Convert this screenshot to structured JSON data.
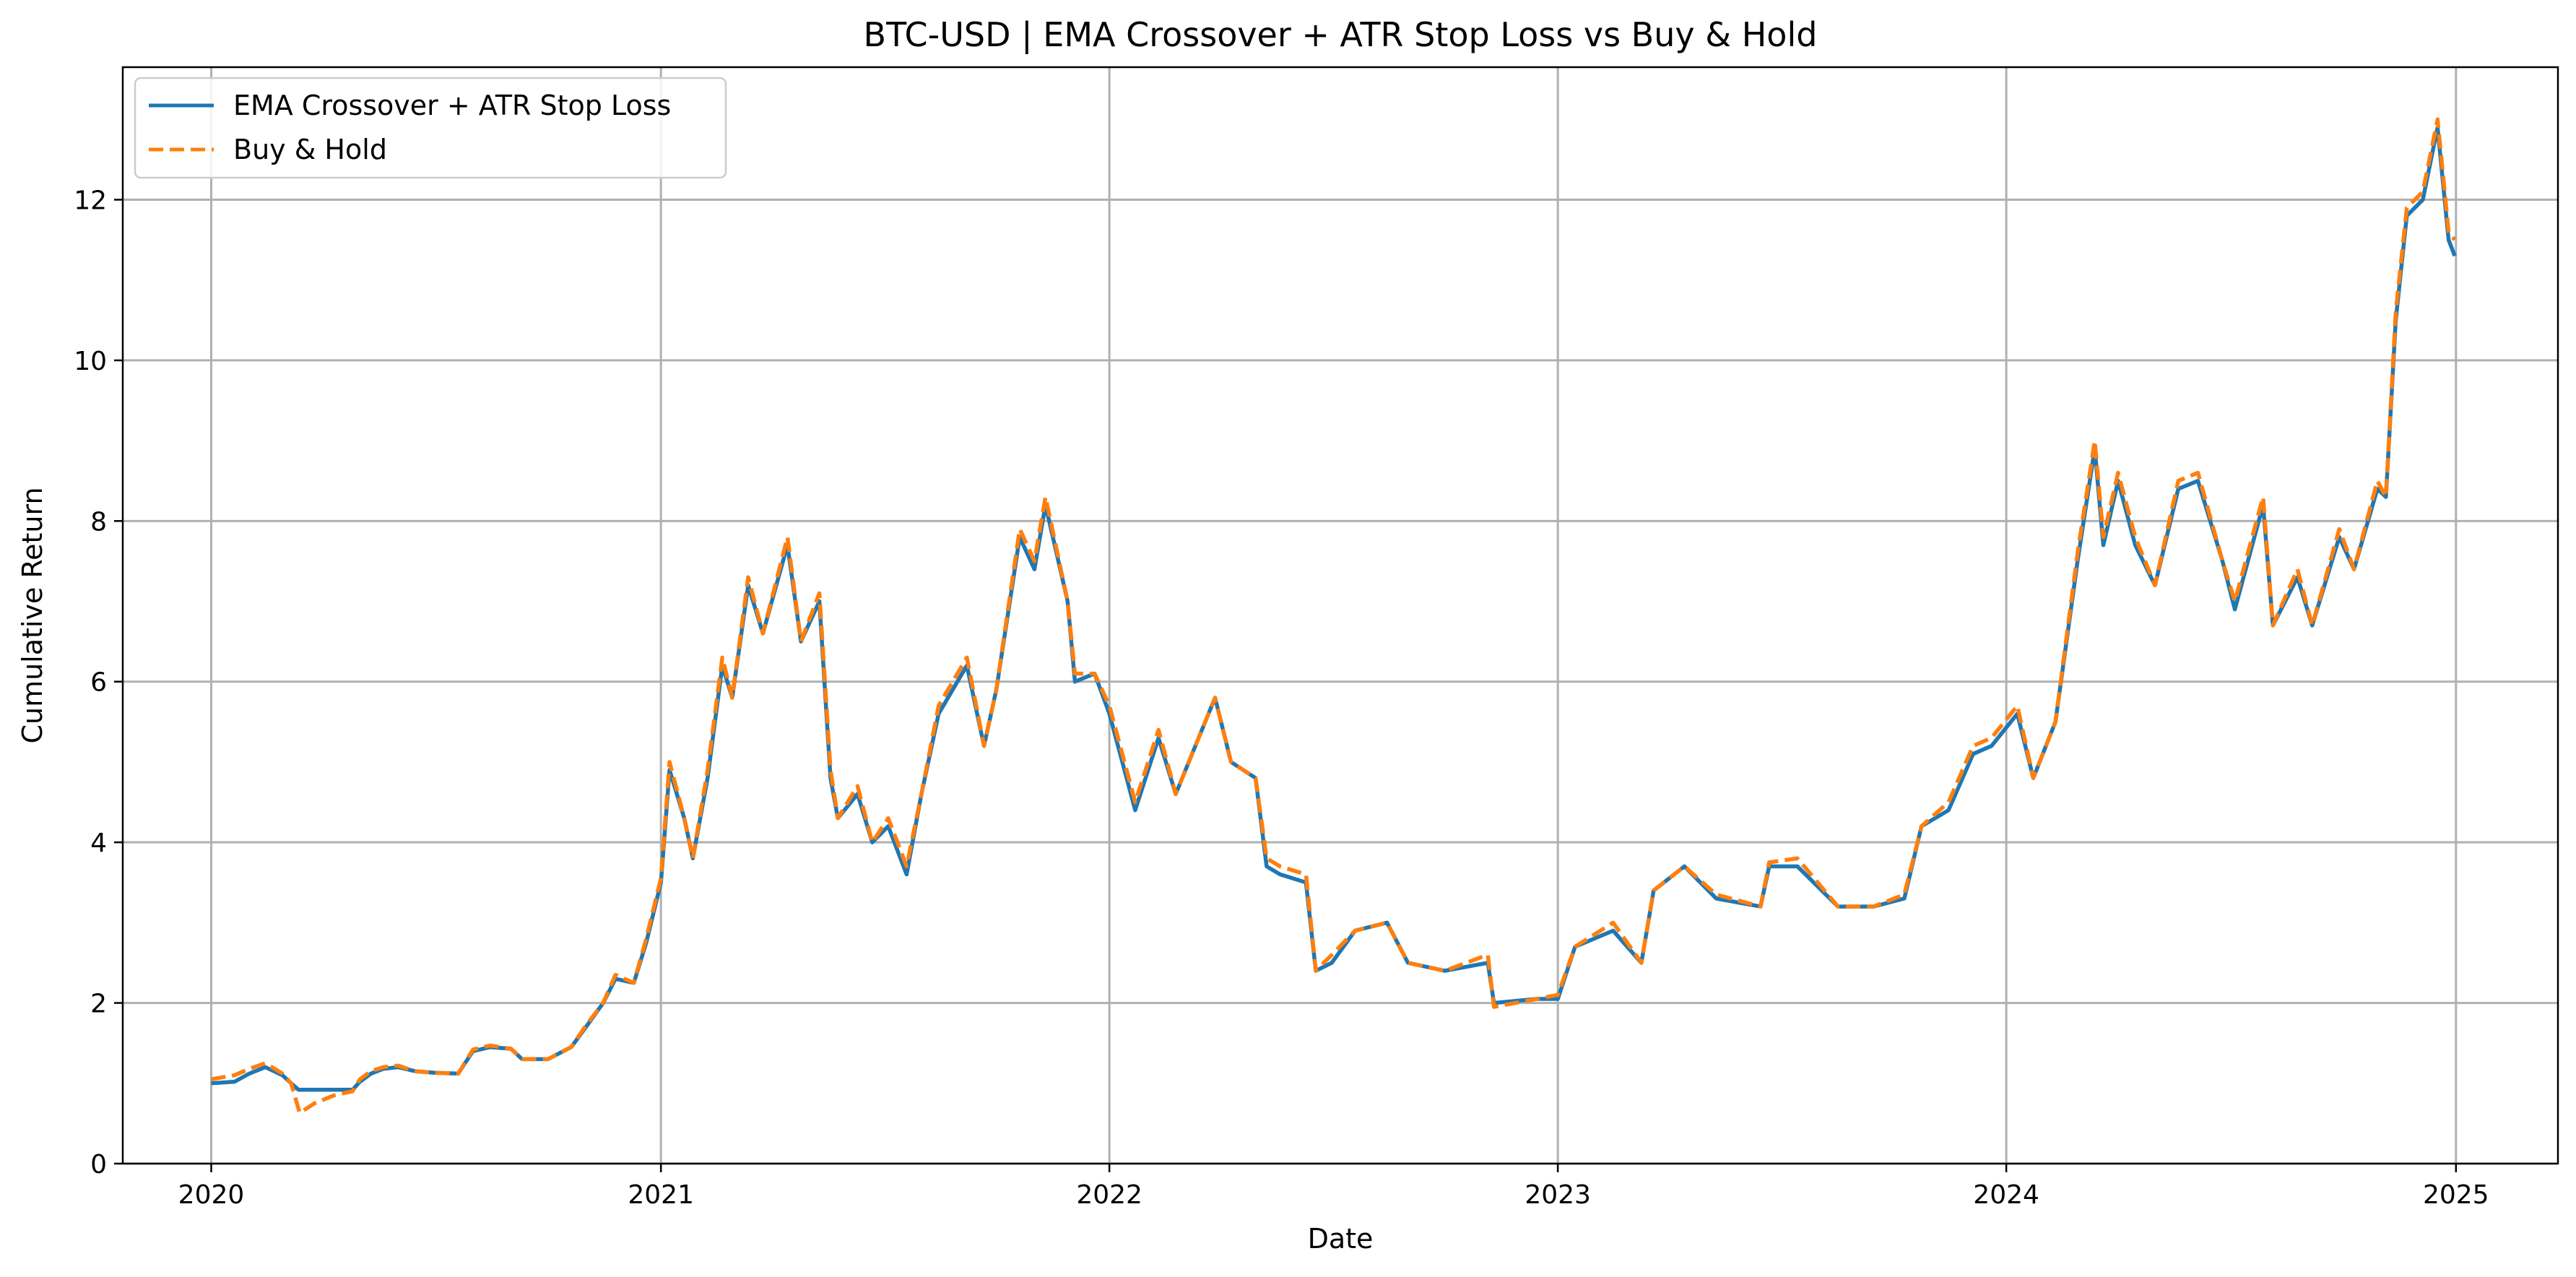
{
  "chart_data": {
    "type": "line",
    "title": "BTC-USD | EMA Crossover + ATR Stop Loss vs Buy & Hold",
    "xlabel": "Date",
    "ylabel": "Cumulative Return",
    "xlim": [
      "2019-10-21",
      "2025-03-25"
    ],
    "ylim": [
      0,
      13.65
    ],
    "x_ticks": [
      "2020",
      "2021",
      "2022",
      "2023",
      "2024",
      "2025"
    ],
    "x_tick_dates": [
      "2020-01-01",
      "2021-01-01",
      "2022-01-01",
      "2023-01-01",
      "2024-01-01",
      "2025-01-01"
    ],
    "y_ticks": [
      0,
      2,
      4,
      6,
      8,
      10,
      12
    ],
    "grid": true,
    "legend_position": "upper-left",
    "series": [
      {
        "name": "EMA Crossover + ATR Stop Loss",
        "color": "#1f77b4",
        "style": "solid",
        "points": [
          [
            "2020-01-01",
            1.0
          ],
          [
            "2020-01-20",
            1.02
          ],
          [
            "2020-02-01",
            1.12
          ],
          [
            "2020-02-14",
            1.2
          ],
          [
            "2020-02-28",
            1.1
          ],
          [
            "2020-03-06",
            1.0
          ],
          [
            "2020-03-12",
            0.92
          ],
          [
            "2020-03-25",
            0.92
          ],
          [
            "2020-04-10",
            0.92
          ],
          [
            "2020-04-25",
            0.92
          ],
          [
            "2020-05-01",
            1.02
          ],
          [
            "2020-05-10",
            1.12
          ],
          [
            "2020-05-20",
            1.18
          ],
          [
            "2020-06-01",
            1.2
          ],
          [
            "2020-06-15",
            1.15
          ],
          [
            "2020-07-01",
            1.13
          ],
          [
            "2020-07-20",
            1.12
          ],
          [
            "2020-08-01",
            1.4
          ],
          [
            "2020-08-15",
            1.45
          ],
          [
            "2020-09-01",
            1.43
          ],
          [
            "2020-09-10",
            1.3
          ],
          [
            "2020-10-01",
            1.3
          ],
          [
            "2020-10-20",
            1.45
          ],
          [
            "2020-11-01",
            1.7
          ],
          [
            "2020-11-15",
            2.0
          ],
          [
            "2020-11-25",
            2.3
          ],
          [
            "2020-12-10",
            2.25
          ],
          [
            "2020-12-20",
            2.75
          ],
          [
            "2021-01-01",
            3.5
          ],
          [
            "2021-01-08",
            4.9
          ],
          [
            "2021-01-20",
            4.3
          ],
          [
            "2021-01-27",
            3.8
          ],
          [
            "2021-02-08",
            4.8
          ],
          [
            "2021-02-20",
            6.2
          ],
          [
            "2021-02-28",
            5.8
          ],
          [
            "2021-03-13",
            7.2
          ],
          [
            "2021-03-25",
            6.6
          ],
          [
            "2021-04-14",
            7.7
          ],
          [
            "2021-04-25",
            6.5
          ],
          [
            "2021-05-10",
            7.0
          ],
          [
            "2021-05-19",
            4.8
          ],
          [
            "2021-05-25",
            4.3
          ],
          [
            "2021-06-10",
            4.6
          ],
          [
            "2021-06-22",
            4.0
          ],
          [
            "2021-07-05",
            4.2
          ],
          [
            "2021-07-20",
            3.6
          ],
          [
            "2021-08-01",
            4.6
          ],
          [
            "2021-08-15",
            5.6
          ],
          [
            "2021-09-07",
            6.2
          ],
          [
            "2021-09-21",
            5.2
          ],
          [
            "2021-10-01",
            5.9
          ],
          [
            "2021-10-20",
            7.8
          ],
          [
            "2021-11-01",
            7.4
          ],
          [
            "2021-11-10",
            8.2
          ],
          [
            "2021-11-28",
            7.0
          ],
          [
            "2021-12-04",
            6.0
          ],
          [
            "2021-12-20",
            6.1
          ],
          [
            "2022-01-01",
            5.6
          ],
          [
            "2022-01-22",
            4.4
          ],
          [
            "2022-02-10",
            5.3
          ],
          [
            "2022-02-24",
            4.6
          ],
          [
            "2022-03-28",
            5.8
          ],
          [
            "2022-04-10",
            5.0
          ],
          [
            "2022-04-30",
            4.8
          ],
          [
            "2022-05-09",
            3.7
          ],
          [
            "2022-05-20",
            3.6
          ],
          [
            "2022-06-10",
            3.5
          ],
          [
            "2022-06-18",
            2.4
          ],
          [
            "2022-07-01",
            2.5
          ],
          [
            "2022-07-20",
            2.9
          ],
          [
            "2022-08-15",
            3.0
          ],
          [
            "2022-09-01",
            2.5
          ],
          [
            "2022-10-01",
            2.4
          ],
          [
            "2022-11-05",
            2.5
          ],
          [
            "2022-11-10",
            2.0
          ],
          [
            "2022-12-15",
            2.05
          ],
          [
            "2023-01-01",
            2.05
          ],
          [
            "2023-01-15",
            2.7
          ],
          [
            "2023-02-15",
            2.9
          ],
          [
            "2023-03-10",
            2.5
          ],
          [
            "2023-03-20",
            3.4
          ],
          [
            "2023-04-14",
            3.7
          ],
          [
            "2023-05-10",
            3.3
          ],
          [
            "2023-06-15",
            3.2
          ],
          [
            "2023-06-22",
            3.7
          ],
          [
            "2023-07-15",
            3.7
          ],
          [
            "2023-08-17",
            3.2
          ],
          [
            "2023-09-15",
            3.2
          ],
          [
            "2023-10-10",
            3.3
          ],
          [
            "2023-10-24",
            4.2
          ],
          [
            "2023-11-15",
            4.4
          ],
          [
            "2023-12-05",
            5.1
          ],
          [
            "2023-12-20",
            5.2
          ],
          [
            "2024-01-10",
            5.6
          ],
          [
            "2024-01-23",
            4.8
          ],
          [
            "2024-02-10",
            5.5
          ],
          [
            "2024-02-28",
            7.5
          ],
          [
            "2024-03-13",
            8.9
          ],
          [
            "2024-03-20",
            7.7
          ],
          [
            "2024-04-01",
            8.5
          ],
          [
            "2024-04-15",
            7.7
          ],
          [
            "2024-05-01",
            7.2
          ],
          [
            "2024-05-20",
            8.4
          ],
          [
            "2024-06-05",
            8.5
          ],
          [
            "2024-06-25",
            7.5
          ],
          [
            "2024-07-05",
            6.9
          ],
          [
            "2024-07-28",
            8.2
          ],
          [
            "2024-08-05",
            6.7
          ],
          [
            "2024-08-25",
            7.3
          ],
          [
            "2024-09-06",
            6.7
          ],
          [
            "2024-09-28",
            7.8
          ],
          [
            "2024-10-10",
            7.4
          ],
          [
            "2024-10-29",
            8.4
          ],
          [
            "2024-11-05",
            8.3
          ],
          [
            "2024-11-13",
            10.5
          ],
          [
            "2024-11-22",
            11.8
          ],
          [
            "2024-12-05",
            12.0
          ],
          [
            "2024-12-17",
            12.9
          ],
          [
            "2024-12-26",
            11.5
          ],
          [
            "2024-12-31",
            11.3
          ]
        ]
      },
      {
        "name": "Buy & Hold",
        "color": "#ff7f0e",
        "style": "dashed",
        "points": [
          [
            "2020-01-01",
            1.05
          ],
          [
            "2020-01-20",
            1.1
          ],
          [
            "2020-02-01",
            1.18
          ],
          [
            "2020-02-14",
            1.25
          ],
          [
            "2020-02-28",
            1.12
          ],
          [
            "2020-03-06",
            1.0
          ],
          [
            "2020-03-13",
            0.63
          ],
          [
            "2020-03-25",
            0.75
          ],
          [
            "2020-04-10",
            0.85
          ],
          [
            "2020-04-25",
            0.9
          ],
          [
            "2020-05-01",
            1.05
          ],
          [
            "2020-05-10",
            1.15
          ],
          [
            "2020-05-20",
            1.2
          ],
          [
            "2020-06-01",
            1.22
          ],
          [
            "2020-06-15",
            1.15
          ],
          [
            "2020-07-01",
            1.13
          ],
          [
            "2020-07-20",
            1.12
          ],
          [
            "2020-08-01",
            1.42
          ],
          [
            "2020-08-15",
            1.47
          ],
          [
            "2020-09-01",
            1.43
          ],
          [
            "2020-09-10",
            1.3
          ],
          [
            "2020-10-01",
            1.3
          ],
          [
            "2020-10-20",
            1.45
          ],
          [
            "2020-11-01",
            1.72
          ],
          [
            "2020-11-15",
            2.0
          ],
          [
            "2020-11-25",
            2.35
          ],
          [
            "2020-12-10",
            2.25
          ],
          [
            "2020-12-20",
            2.8
          ],
          [
            "2021-01-01",
            3.55
          ],
          [
            "2021-01-08",
            5.0
          ],
          [
            "2021-01-20",
            4.3
          ],
          [
            "2021-01-27",
            3.8
          ],
          [
            "2021-02-08",
            4.9
          ],
          [
            "2021-02-20",
            6.3
          ],
          [
            "2021-02-28",
            5.8
          ],
          [
            "2021-03-13",
            7.3
          ],
          [
            "2021-03-25",
            6.6
          ],
          [
            "2021-04-14",
            7.8
          ],
          [
            "2021-04-25",
            6.5
          ],
          [
            "2021-05-10",
            7.1
          ],
          [
            "2021-05-19",
            4.9
          ],
          [
            "2021-05-25",
            4.3
          ],
          [
            "2021-06-10",
            4.7
          ],
          [
            "2021-06-22",
            4.0
          ],
          [
            "2021-07-05",
            4.3
          ],
          [
            "2021-07-20",
            3.7
          ],
          [
            "2021-08-01",
            4.6
          ],
          [
            "2021-08-15",
            5.7
          ],
          [
            "2021-09-07",
            6.3
          ],
          [
            "2021-09-21",
            5.2
          ],
          [
            "2021-10-01",
            5.9
          ],
          [
            "2021-10-20",
            7.9
          ],
          [
            "2021-11-01",
            7.5
          ],
          [
            "2021-11-10",
            8.3
          ],
          [
            "2021-11-28",
            7.0
          ],
          [
            "2021-12-04",
            6.1
          ],
          [
            "2021-12-20",
            6.1
          ],
          [
            "2022-01-01",
            5.7
          ],
          [
            "2022-01-22",
            4.5
          ],
          [
            "2022-02-10",
            5.4
          ],
          [
            "2022-02-24",
            4.6
          ],
          [
            "2022-03-28",
            5.8
          ],
          [
            "2022-04-10",
            5.0
          ],
          [
            "2022-04-30",
            4.8
          ],
          [
            "2022-05-09",
            3.8
          ],
          [
            "2022-05-20",
            3.7
          ],
          [
            "2022-06-10",
            3.6
          ],
          [
            "2022-06-18",
            2.4
          ],
          [
            "2022-07-01",
            2.6
          ],
          [
            "2022-07-20",
            2.9
          ],
          [
            "2022-08-15",
            3.0
          ],
          [
            "2022-09-01",
            2.5
          ],
          [
            "2022-10-01",
            2.4
          ],
          [
            "2022-11-05",
            2.6
          ],
          [
            "2022-11-10",
            1.95
          ],
          [
            "2022-12-15",
            2.05
          ],
          [
            "2023-01-01",
            2.1
          ],
          [
            "2023-01-15",
            2.7
          ],
          [
            "2023-02-15",
            3.0
          ],
          [
            "2023-03-10",
            2.5
          ],
          [
            "2023-03-20",
            3.4
          ],
          [
            "2023-04-14",
            3.7
          ],
          [
            "2023-05-10",
            3.35
          ],
          [
            "2023-06-15",
            3.2
          ],
          [
            "2023-06-22",
            3.75
          ],
          [
            "2023-07-15",
            3.8
          ],
          [
            "2023-08-17",
            3.2
          ],
          [
            "2023-09-15",
            3.2
          ],
          [
            "2023-10-10",
            3.35
          ],
          [
            "2023-10-24",
            4.2
          ],
          [
            "2023-11-15",
            4.5
          ],
          [
            "2023-12-05",
            5.2
          ],
          [
            "2023-12-20",
            5.3
          ],
          [
            "2024-01-10",
            5.7
          ],
          [
            "2024-01-23",
            4.8
          ],
          [
            "2024-02-10",
            5.5
          ],
          [
            "2024-02-28",
            7.6
          ],
          [
            "2024-03-13",
            9.0
          ],
          [
            "2024-03-20",
            7.8
          ],
          [
            "2024-04-01",
            8.6
          ],
          [
            "2024-04-15",
            7.8
          ],
          [
            "2024-05-01",
            7.2
          ],
          [
            "2024-05-20",
            8.5
          ],
          [
            "2024-06-05",
            8.6
          ],
          [
            "2024-06-25",
            7.5
          ],
          [
            "2024-07-05",
            7.0
          ],
          [
            "2024-07-28",
            8.3
          ],
          [
            "2024-08-05",
            6.7
          ],
          [
            "2024-08-25",
            7.4
          ],
          [
            "2024-09-06",
            6.7
          ],
          [
            "2024-09-28",
            7.9
          ],
          [
            "2024-10-10",
            7.4
          ],
          [
            "2024-10-29",
            8.5
          ],
          [
            "2024-11-05",
            8.3
          ],
          [
            "2024-11-13",
            10.6
          ],
          [
            "2024-11-22",
            11.9
          ],
          [
            "2024-12-05",
            12.1
          ],
          [
            "2024-12-17",
            13.0
          ],
          [
            "2024-12-26",
            11.6
          ],
          [
            "2024-12-31",
            11.5
          ]
        ]
      }
    ]
  }
}
